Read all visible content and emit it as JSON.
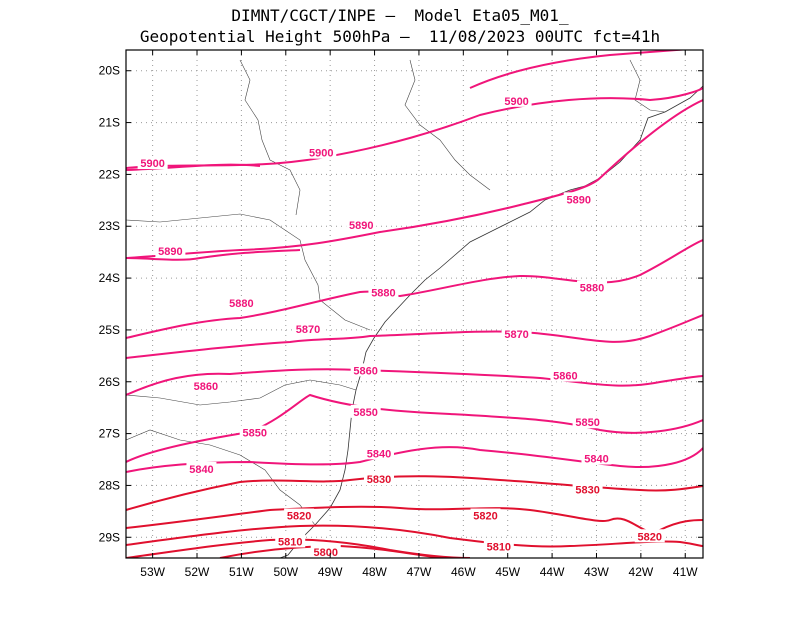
{
  "title": {
    "line1": "DIMNT/CGCT/INPE –  Model Eta05_M01_",
    "line2": "Geopotential Height 500hPa –  11/08/2023 00UTC fct=41h"
  },
  "map": {
    "lon_range": [
      -53.6,
      -40.6
    ],
    "lat_range": [
      -29.4,
      -19.6
    ],
    "lon_ticks": [
      "53W",
      "52W",
      "51W",
      "50W",
      "49W",
      "48W",
      "47W",
      "46W",
      "45W",
      "44W",
      "43W",
      "42W",
      "41W"
    ],
    "lat_ticks": [
      "20S",
      "21S",
      "22S",
      "23S",
      "24S",
      "25S",
      "26S",
      "27S",
      "28S",
      "29S"
    ]
  },
  "contours": {
    "colors": {
      "high": "#f0157a",
      "low": "#e0102e"
    },
    "labels": [
      {
        "text": "5900",
        "lon": -44.8,
        "lat": -20.6
      },
      {
        "text": "5900",
        "lon": -53.0,
        "lat": -21.8
      },
      {
        "text": "5900",
        "lon": -49.2,
        "lat": -21.6
      },
      {
        "text": "5890",
        "lon": -43.4,
        "lat": -22.5
      },
      {
        "text": "5890",
        "lon": -48.3,
        "lat": -23.0
      },
      {
        "text": "5890",
        "lon": -52.6,
        "lat": -23.5
      },
      {
        "text": "5880",
        "lon": -51.0,
        "lat": -24.5
      },
      {
        "text": "5880",
        "lon": -47.8,
        "lat": -24.3
      },
      {
        "text": "5880",
        "lon": -43.1,
        "lat": -24.2
      },
      {
        "text": "5870",
        "lon": -49.5,
        "lat": -25.0
      },
      {
        "text": "5870",
        "lon": -44.8,
        "lat": -25.1
      },
      {
        "text": "5860",
        "lon": -51.8,
        "lat": -26.1
      },
      {
        "text": "5860",
        "lon": -48.2,
        "lat": -25.8
      },
      {
        "text": "5860",
        "lon": -43.7,
        "lat": -25.9
      },
      {
        "text": "5850",
        "lon": -50.7,
        "lat": -27.0
      },
      {
        "text": "5850",
        "lon": -48.2,
        "lat": -26.6
      },
      {
        "text": "5850",
        "lon": -43.2,
        "lat": -26.8
      },
      {
        "text": "5840",
        "lon": -51.9,
        "lat": -27.7
      },
      {
        "text": "5840",
        "lon": -47.9,
        "lat": -27.4
      },
      {
        "text": "5840",
        "lon": -43.0,
        "lat": -27.5
      },
      {
        "text": "5830",
        "lon": -47.9,
        "lat": -27.9
      },
      {
        "text": "5830",
        "lon": -43.2,
        "lat": -28.1
      },
      {
        "text": "5820",
        "lon": -49.7,
        "lat": -28.6
      },
      {
        "text": "5820",
        "lon": -45.5,
        "lat": -28.6
      },
      {
        "text": "5820",
        "lon": -41.8,
        "lat": -29.0
      },
      {
        "text": "5810",
        "lon": -49.9,
        "lat": -29.1
      },
      {
        "text": "5810",
        "lon": -45.2,
        "lat": -29.2
      },
      {
        "text": "5800",
        "lon": -49.1,
        "lat": -29.3
      }
    ]
  }
}
